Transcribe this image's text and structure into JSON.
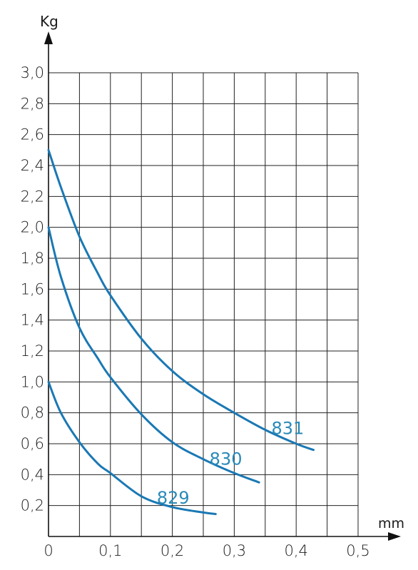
{
  "chart_data": {
    "type": "line",
    "title": "",
    "xlabel": "mm",
    "ylabel": "Kg",
    "xlim": [
      0,
      0.5
    ],
    "ylim": [
      0,
      3.0
    ],
    "grid": true,
    "x_ticks": [
      "0",
      "0,1",
      "0,2",
      "0,3",
      "0,4",
      "0,5"
    ],
    "y_ticks": [
      "0,2",
      "0,4",
      "0,6",
      "0,8",
      "1,0",
      "1,2",
      "1,4",
      "1,6",
      "1,8",
      "2,0",
      "2,2",
      "2,4",
      "2,6",
      "2,8",
      "3,0"
    ],
    "line_color": "#1a78b4",
    "label_color": "#2a8ab8",
    "series": [
      {
        "name": "831",
        "points": [
          [
            0,
            2.5
          ],
          [
            0.02,
            2.26
          ],
          [
            0.05,
            1.94
          ],
          [
            0.08,
            1.7
          ],
          [
            0.1,
            1.56
          ],
          [
            0.15,
            1.28
          ],
          [
            0.2,
            1.07
          ],
          [
            0.25,
            0.92
          ],
          [
            0.3,
            0.8
          ],
          [
            0.35,
            0.69
          ],
          [
            0.4,
            0.6
          ],
          [
            0.428,
            0.56
          ]
        ]
      },
      {
        "name": "830",
        "points": [
          [
            0,
            2.0
          ],
          [
            0.02,
            1.68
          ],
          [
            0.05,
            1.35
          ],
          [
            0.08,
            1.15
          ],
          [
            0.1,
            1.03
          ],
          [
            0.15,
            0.79
          ],
          [
            0.2,
            0.61
          ],
          [
            0.25,
            0.5
          ],
          [
            0.3,
            0.41
          ],
          [
            0.34,
            0.35
          ]
        ]
      },
      {
        "name": "829",
        "points": [
          [
            0,
            1.0
          ],
          [
            0.02,
            0.8
          ],
          [
            0.05,
            0.61
          ],
          [
            0.08,
            0.47
          ],
          [
            0.1,
            0.41
          ],
          [
            0.15,
            0.26
          ],
          [
            0.2,
            0.19
          ],
          [
            0.25,
            0.155
          ],
          [
            0.27,
            0.145
          ]
        ]
      }
    ]
  }
}
